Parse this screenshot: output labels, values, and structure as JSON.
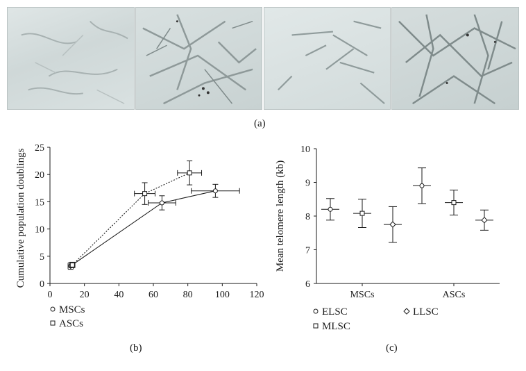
{
  "panel_a": {
    "label": "(a)",
    "photos": [
      "cell-photo-1",
      "cell-photo-2",
      "cell-photo-3",
      "cell-photo-4"
    ]
  },
  "chart_data": [
    {
      "type": "line",
      "panel_label": "(b)",
      "ylabel": "Cumulative population doublings",
      "xlabel": "",
      "xlim": [
        0,
        120
      ],
      "ylim": [
        0,
        25
      ],
      "x_ticks": [
        "0",
        "20",
        "40",
        "60",
        "80",
        "100",
        "120"
      ],
      "y_ticks": [
        "0",
        "5",
        "10",
        "15",
        "20",
        "25"
      ],
      "series": [
        {
          "name": "MSCs",
          "marker": "circle",
          "line_style": "solid",
          "points": [
            {
              "x": 12,
              "y": 3.2,
              "xerr": 1.5,
              "yerr": 0.6
            },
            {
              "x": 65,
              "y": 14.8,
              "xerr": 8,
              "yerr": 1.3
            },
            {
              "x": 96,
              "y": 17.0,
              "xerr": 14,
              "yerr": 1.2
            }
          ]
        },
        {
          "name": "ASCs",
          "marker": "square",
          "line_style": "dotted",
          "points": [
            {
              "x": 13,
              "y": 3.4,
              "xerr": 1.5,
              "yerr": 0.5
            },
            {
              "x": 55,
              "y": 16.5,
              "xerr": 6,
              "yerr": 2.0
            },
            {
              "x": 81,
              "y": 20.3,
              "xerr": 7,
              "yerr": 2.2
            }
          ]
        }
      ],
      "legend": [
        {
          "marker": "circle",
          "label": "MSCs"
        },
        {
          "marker": "square",
          "label": "ASCs"
        }
      ]
    },
    {
      "type": "scatter",
      "panel_label": "(c)",
      "ylabel": "Mean telomere length (kb)",
      "categories": [
        "MSCs",
        "ASCs"
      ],
      "ylim": [
        6,
        10
      ],
      "y_ticks": [
        "6",
        "7",
        "8",
        "9",
        "10"
      ],
      "series": [
        {
          "name": "ELSC",
          "marker": "circle",
          "values": [
            8.2,
            8.9
          ],
          "errors": [
            0.32,
            0.53
          ]
        },
        {
          "name": "MLSC",
          "marker": "square",
          "values": [
            8.08,
            8.4
          ],
          "errors": [
            0.42,
            0.37
          ]
        },
        {
          "name": "LLSC",
          "marker": "diamond",
          "values": [
            7.75,
            7.88
          ],
          "errors": [
            0.53,
            0.3
          ]
        }
      ],
      "legend": [
        {
          "marker": "circle",
          "label": "ELSC"
        },
        {
          "marker": "diamond",
          "label": "LLSC"
        },
        {
          "marker": "square",
          "label": "MLSC"
        }
      ]
    }
  ]
}
